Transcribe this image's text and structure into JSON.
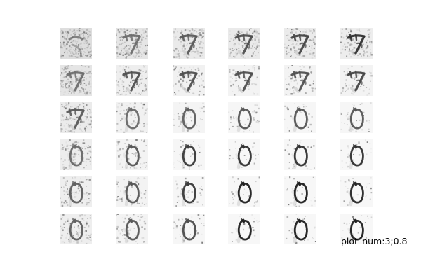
{
  "caption": "plot_num:3;0.8",
  "grid": {
    "rows": 6,
    "cols": 6,
    "cells": [
      [
        {
          "digit": "noise",
          "noise": 0.95,
          "ink": 0.3
        },
        {
          "digit": "7",
          "noise": 0.7,
          "ink": 0.45
        },
        {
          "digit": "7",
          "noise": 0.55,
          "ink": 0.55
        },
        {
          "digit": "7",
          "noise": 0.55,
          "ink": 0.6
        },
        {
          "digit": "7",
          "noise": 0.5,
          "ink": 0.65
        },
        {
          "digit": "7",
          "noise": 0.45,
          "ink": 0.75
        }
      ],
      [
        {
          "digit": "7",
          "noise": 0.7,
          "ink": 0.45
        },
        {
          "digit": "7",
          "noise": 0.4,
          "ink": 0.6
        },
        {
          "digit": "7",
          "noise": 0.3,
          "ink": 0.6
        },
        {
          "digit": "7",
          "noise": 0.25,
          "ink": 0.6
        },
        {
          "digit": "7",
          "noise": 0.25,
          "ink": 0.6
        },
        {
          "digit": "7",
          "noise": 0.25,
          "ink": 0.65
        }
      ],
      [
        {
          "digit": "7",
          "noise": 0.5,
          "ink": 0.55
        },
        {
          "digit": "0",
          "noise": 0.3,
          "ink": 0.45
        },
        {
          "digit": "0",
          "noise": 0.2,
          "ink": 0.5
        },
        {
          "digit": "0",
          "noise": 0.15,
          "ink": 0.55
        },
        {
          "digit": "0",
          "noise": 0.15,
          "ink": 0.55
        },
        {
          "digit": "0",
          "noise": 0.15,
          "ink": 0.55
        }
      ],
      [
        {
          "digit": "0",
          "noise": 0.45,
          "ink": 0.45
        },
        {
          "digit": "0",
          "noise": 0.25,
          "ink": 0.55
        },
        {
          "digit": "0",
          "noise": 0.15,
          "ink": 0.7
        },
        {
          "digit": "0",
          "noise": 0.1,
          "ink": 0.75
        },
        {
          "digit": "0",
          "noise": 0.1,
          "ink": 0.75
        },
        {
          "digit": "0",
          "noise": 0.1,
          "ink": 0.75
        }
      ],
      [
        {
          "digit": "0",
          "noise": 0.4,
          "ink": 0.5
        },
        {
          "digit": "0",
          "noise": 0.25,
          "ink": 0.55
        },
        {
          "digit": "0",
          "noise": 0.15,
          "ink": 0.7
        },
        {
          "digit": "0",
          "noise": 0.1,
          "ink": 0.85
        },
        {
          "digit": "0",
          "noise": 0.1,
          "ink": 0.85
        },
        {
          "digit": "0",
          "noise": 0.1,
          "ink": 0.8
        }
      ],
      [
        {
          "digit": "0",
          "noise": 0.4,
          "ink": 0.5
        },
        {
          "digit": "0",
          "noise": 0.25,
          "ink": 0.55
        },
        {
          "digit": "0",
          "noise": 0.15,
          "ink": 0.6
        },
        {
          "digit": "0",
          "noise": 0.1,
          "ink": 0.85
        },
        {
          "digit": "0",
          "noise": 0.1,
          "ink": 0.85
        },
        {
          "digit": "0",
          "noise": 0.1,
          "ink": 0.85
        }
      ]
    ]
  },
  "colors": {
    "background": "#ffffff",
    "ink": "#000000"
  }
}
